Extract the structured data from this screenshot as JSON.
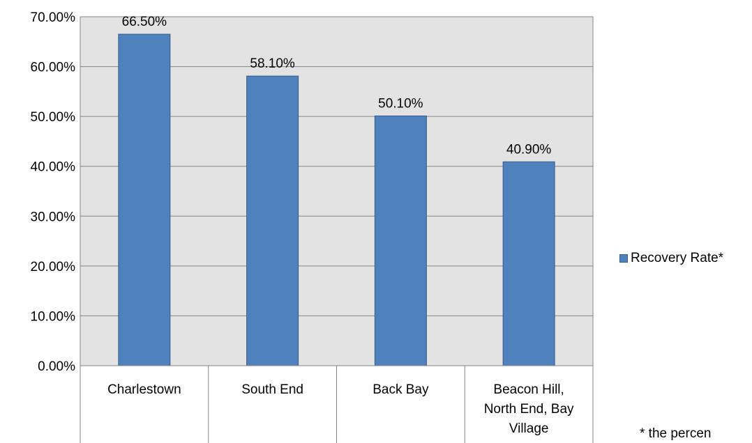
{
  "chart_data": {
    "type": "bar",
    "categories": [
      [
        "Charlestown"
      ],
      [
        "South End"
      ],
      [
        "Back Bay"
      ],
      [
        "Beacon Hill,",
        "North End, Bay",
        "Village"
      ]
    ],
    "series": [
      {
        "name": "Recovery Rate*",
        "values": [
          66.5,
          58.1,
          50.1,
          40.9
        ]
      }
    ],
    "value_labels": [
      "66.50%",
      "58.10%",
      "50.10%",
      "40.90%"
    ],
    "y_ticks": [
      "0.00%",
      "10.00%",
      "20.00%",
      "30.00%",
      "40.00%",
      "50.00%",
      "60.00%",
      "70.00%"
    ],
    "ylim": [
      0,
      70
    ],
    "grid": true,
    "legend_position": "right",
    "colors": {
      "bar": "#4f81bd",
      "bar_edge": "#385d8a",
      "plot_bg": "#e3e3e3",
      "grid": "#868686"
    }
  },
  "footnote": "*  the percen"
}
